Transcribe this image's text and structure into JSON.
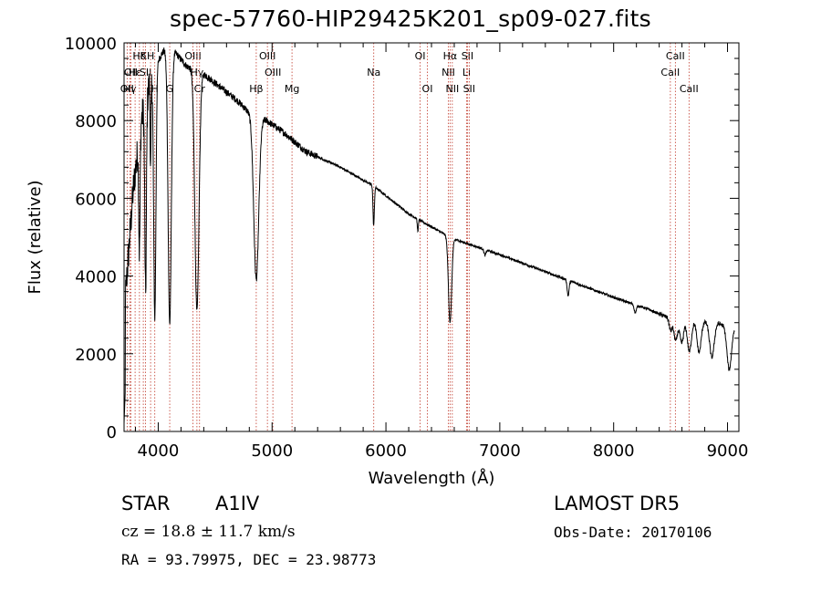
{
  "chart_data": {
    "type": "line",
    "title": "spec-57760-HIP29425K201_sp09-027.fits",
    "xlabel": "Wavelength (Å)",
    "ylabel": "Flux (relative)",
    "xlim": [
      3700,
      9100
    ],
    "ylim": [
      0,
      10000
    ],
    "xticks": [
      4000,
      5000,
      6000,
      7000,
      8000,
      9000
    ],
    "yticks": [
      0,
      2000,
      4000,
      6000,
      8000,
      10000
    ],
    "grid": false,
    "continuum_anchors": [
      [
        3700,
        3000
      ],
      [
        3780,
        6200
      ],
      [
        3850,
        8000
      ],
      [
        3950,
        9300
      ],
      [
        4050,
        9800
      ],
      [
        4150,
        9750
      ],
      [
        4250,
        9400
      ],
      [
        4400,
        9200
      ],
      [
        4700,
        8500
      ],
      [
        4800,
        8200
      ],
      [
        4950,
        8000
      ],
      [
        5100,
        7700
      ],
      [
        5300,
        7200
      ],
      [
        5600,
        6800
      ],
      [
        5900,
        6300
      ],
      [
        6200,
        5600
      ],
      [
        6500,
        5100
      ],
      [
        6600,
        4950
      ],
      [
        7000,
        4550
      ],
      [
        7500,
        4000
      ],
      [
        8000,
        3450
      ],
      [
        8300,
        3150
      ],
      [
        8500,
        2900
      ],
      [
        8900,
        2800
      ],
      [
        9000,
        2700
      ],
      [
        9100,
        2700
      ]
    ],
    "absorption_features": [
      {
        "center": 3835,
        "depth": 3000,
        "width": 6
      },
      {
        "center": 3889,
        "depth": 5000,
        "width": 7
      },
      {
        "center": 3933,
        "depth": 2500,
        "width": 4
      },
      {
        "center": 3970,
        "depth": 6500,
        "width": 10
      },
      {
        "center": 4101,
        "depth": 7000,
        "width": 14
      },
      {
        "center": 4340,
        "depth": 6200,
        "width": 18
      },
      {
        "center": 4861,
        "depth": 4200,
        "width": 22
      },
      {
        "center": 5890,
        "depth": 700,
        "width": 5
      },
      {
        "center": 5896,
        "depth": 500,
        "width": 5
      },
      {
        "center": 6280,
        "depth": 300,
        "width": 5
      },
      {
        "center": 6563,
        "depth": 2200,
        "width": 14
      },
      {
        "center": 6870,
        "depth": 150,
        "width": 8
      },
      {
        "center": 7600,
        "depth": 400,
        "width": 8
      },
      {
        "center": 8190,
        "depth": 200,
        "width": 10
      },
      {
        "center": 8500,
        "depth": 300,
        "width": 12
      },
      {
        "center": 8545,
        "depth": 550,
        "width": 16
      },
      {
        "center": 8598,
        "depth": 600,
        "width": 16
      },
      {
        "center": 8665,
        "depth": 800,
        "width": 18
      },
      {
        "center": 8750,
        "depth": 800,
        "width": 18
      },
      {
        "center": 8863,
        "depth": 900,
        "width": 20
      },
      {
        "center": 9015,
        "depth": 1100,
        "width": 20
      }
    ],
    "line_markers": [
      {
        "wavelength": 3727,
        "label": "OII",
        "row": 2
      },
      {
        "wavelength": 3750,
        "label": "Hγ",
        "row": 2
      },
      {
        "wavelength": 3760,
        "label": "OII",
        "row": 1
      },
      {
        "wavelength": 3797,
        "label": "Hε",
        "row": 1
      },
      {
        "wavelength": 3835,
        "label": "Hδ",
        "row": 0
      },
      {
        "wavelength": 3869,
        "label": "K",
        "row": 0
      },
      {
        "wavelength": 3889,
        "label": "SII",
        "row": 1
      },
      {
        "wavelength": 3933,
        "label": "H",
        "row": 0
      },
      {
        "wavelength": 3970,
        "label": "H",
        "row": 2
      },
      {
        "wavelength": 4101,
        "label": "G",
        "row": 2
      },
      {
        "wavelength": 4305,
        "label": "OIII",
        "row": 0
      },
      {
        "wavelength": 4340,
        "label": "Hγ",
        "row": 1
      },
      {
        "wavelength": 4363,
        "label": "Cr",
        "row": 2
      },
      {
        "wavelength": 4861,
        "label": "Hβ",
        "row": 2
      },
      {
        "wavelength": 4959,
        "label": "OIII",
        "row": 0
      },
      {
        "wavelength": 5007,
        "label": "OIII",
        "row": 1
      },
      {
        "wavelength": 5175,
        "label": "Mg",
        "row": 2
      },
      {
        "wavelength": 5893,
        "label": "Na",
        "row": 1
      },
      {
        "wavelength": 6300,
        "label": "OI",
        "row": 0
      },
      {
        "wavelength": 6364,
        "label": "OI",
        "row": 2
      },
      {
        "wavelength": 6548,
        "label": "NII",
        "row": 1
      },
      {
        "wavelength": 6563,
        "label": "Hα",
        "row": 0
      },
      {
        "wavelength": 6583,
        "label": "NII",
        "row": 2
      },
      {
        "wavelength": 6708,
        "label": "Li",
        "row": 1
      },
      {
        "wavelength": 6716,
        "label": "SII",
        "row": 0
      },
      {
        "wavelength": 6731,
        "label": "SII",
        "row": 2
      },
      {
        "wavelength": 8498,
        "label": "CaII",
        "row": 1
      },
      {
        "wavelength": 8542,
        "label": "CaII",
        "row": 0
      },
      {
        "wavelength": 8662,
        "label": "CaII",
        "row": 2
      }
    ]
  },
  "info": {
    "object_class": "STAR",
    "subclass": "A1IV",
    "survey": "LAMOST DR5",
    "cz": "cz = 18.8 ± 11.7 km/s",
    "obs_date": "Obs-Date: 20170106",
    "coords": "RA =  93.79975, DEC =  23.98773"
  },
  "colors": {
    "spectrum": "#000000",
    "marker": "#c0392b",
    "axes": "#000000",
    "background": "#ffffff"
  }
}
